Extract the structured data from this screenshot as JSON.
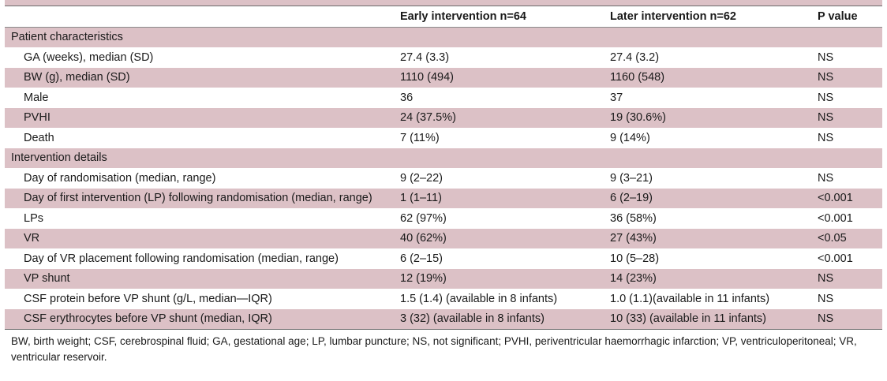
{
  "header": {
    "col_label": "",
    "col_early": "Early intervention n=64",
    "col_later": "Later intervention n=62",
    "col_p": "P value"
  },
  "rows": [
    {
      "label": "Patient characteristics",
      "early": "",
      "later": "",
      "p": ""
    },
    {
      "label": "GA (weeks), median (SD)",
      "early": "27.4 (3.3)",
      "later": "27.4 (3.2)",
      "p": "NS"
    },
    {
      "label": "BW (g), median (SD)",
      "early": "1110 (494)",
      "later": "1160 (548)",
      "p": "NS"
    },
    {
      "label": "Male",
      "early": "36",
      "later": "37",
      "p": "NS"
    },
    {
      "label": "PVHI",
      "early": "24 (37.5%)",
      "later": "19 (30.6%)",
      "p": "NS"
    },
    {
      "label": "Death",
      "early": "7 (11%)",
      "later": "9 (14%)",
      "p": "NS"
    },
    {
      "label": "Intervention details",
      "early": "",
      "later": "",
      "p": ""
    },
    {
      "label": "Day of randomisation (median, range)",
      "early": "9 (2–22)",
      "later": "9 (3–21)",
      "p": "NS"
    },
    {
      "label": "Day of first intervention (LP) following randomisation (median, range)",
      "early": "1 (1–11)",
      "later": "6 (2–19)",
      "p": "<0.001"
    },
    {
      "label": "LPs",
      "early": "62 (97%)",
      "later": "36 (58%)",
      "p": "<0.001"
    },
    {
      "label": "VR",
      "early": "40 (62%)",
      "later": "27 (43%)",
      "p": "<0.05"
    },
    {
      "label": "Day of VR placement following randomisation (median, range)",
      "early": "6 (2–15)",
      "later": "10 (5–28)",
      "p": "<0.001"
    },
    {
      "label": "VP shunt",
      "early": "12 (19%)",
      "later": "14 (23%)",
      "p": "NS"
    },
    {
      "label": "CSF protein before VP shunt (g/L, median—IQR)",
      "early": "1.5 (1.4) (available in 8 infants)",
      "later": "1.0 (1.1)(available in 11 infants)",
      "p": "NS"
    },
    {
      "label": "CSF erythrocytes before VP shunt (median, IQR)",
      "early": "3 (32) (available in 8 infants)",
      "later": "10 (33) (available in 11 infants)",
      "p": "NS"
    }
  ],
  "footnote": "BW, birth weight; CSF, cerebrospinal fluid; GA, gestational age; LP, lumbar puncture; NS, not significant; PVHI, periventricular haemorrhagic infarction; VP, ventriculoperitoneal; VR, ventricular reservoir.",
  "colors": {
    "row_shade": "#dcc1c6",
    "text": "#1a1a1a",
    "rule": "#6b6b6b"
  }
}
